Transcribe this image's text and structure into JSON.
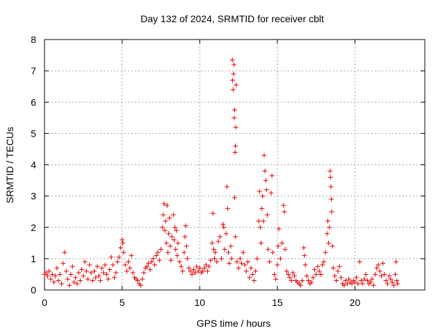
{
  "chart_data": {
    "type": "scatter",
    "title": "Day 132 of 2024, SRMTID for receiver cblt",
    "xlabel": "GPS time / hours",
    "ylabel": "SRMTID / TECUs",
    "xlim": [
      0,
      24.5
    ],
    "ylim": [
      0,
      8
    ],
    "xticks": [
      0,
      5,
      10,
      15,
      20
    ],
    "yticks": [
      0,
      1,
      2,
      3,
      4,
      5,
      6,
      7,
      8
    ],
    "grid": true,
    "marker": "plus",
    "marker_color": "#e00000",
    "series": [
      {
        "name": "SRMTID",
        "points": [
          [
            0.0,
            0.5
          ],
          [
            0.1,
            0.55
          ],
          [
            0.2,
            0.45
          ],
          [
            0.3,
            0.6
          ],
          [
            0.4,
            0.35
          ],
          [
            0.5,
            0.5
          ],
          [
            0.6,
            0.25
          ],
          [
            0.7,
            0.45
          ],
          [
            0.8,
            0.7
          ],
          [
            0.9,
            0.3
          ],
          [
            1.0,
            0.5
          ],
          [
            1.1,
            0.2
          ],
          [
            1.2,
            0.85
          ],
          [
            1.3,
            1.2
          ],
          [
            1.4,
            0.6
          ],
          [
            1.5,
            0.35
          ],
          [
            1.6,
            0.15
          ],
          [
            1.7,
            0.5
          ],
          [
            1.8,
            0.75
          ],
          [
            1.9,
            0.25
          ],
          [
            2.0,
            0.4
          ],
          [
            2.1,
            0.2
          ],
          [
            2.2,
            0.55
          ],
          [
            2.3,
            0.3
          ],
          [
            2.4,
            0.65
          ],
          [
            2.5,
            0.45
          ],
          [
            2.6,
            0.9
          ],
          [
            2.7,
            0.6
          ],
          [
            2.8,
            0.35
          ],
          [
            2.9,
            0.8
          ],
          [
            3.0,
            0.55
          ],
          [
            3.1,
            0.3
          ],
          [
            3.2,
            0.6
          ],
          [
            3.3,
            0.4
          ],
          [
            3.4,
            0.75
          ],
          [
            3.5,
            0.45
          ],
          [
            3.6,
            0.3
          ],
          [
            3.7,
            0.7
          ],
          [
            3.8,
            0.55
          ],
          [
            3.9,
            0.8
          ],
          [
            4.0,
            0.5
          ],
          [
            4.1,
            0.35
          ],
          [
            4.2,
            0.65
          ],
          [
            4.3,
            1.05
          ],
          [
            4.4,
            0.8
          ],
          [
            4.5,
            0.4
          ],
          [
            4.6,
            0.55
          ],
          [
            4.7,
            0.9
          ],
          [
            4.8,
            1.05
          ],
          [
            4.9,
            1.35
          ],
          [
            5.0,
            1.6
          ],
          [
            5.05,
            1.5
          ],
          [
            5.1,
            1.2
          ],
          [
            5.2,
            0.8
          ],
          [
            5.3,
            0.6
          ],
          [
            5.4,
            0.9
          ],
          [
            5.5,
            0.7
          ],
          [
            5.6,
            1.1
          ],
          [
            5.7,
            0.55
          ],
          [
            5.8,
            0.4
          ],
          [
            5.9,
            0.35
          ],
          [
            6.0,
            0.3
          ],
          [
            6.1,
            0.2
          ],
          [
            6.2,
            0.15
          ],
          [
            6.3,
            0.35
          ],
          [
            6.4,
            0.55
          ],
          [
            6.5,
            0.7
          ],
          [
            6.6,
            0.75
          ],
          [
            6.7,
            0.85
          ],
          [
            6.8,
            0.65
          ],
          [
            6.9,
            0.9
          ],
          [
            7.0,
            1.0
          ],
          [
            7.1,
            0.8
          ],
          [
            7.2,
            1.1
          ],
          [
            7.3,
            1.2
          ],
          [
            7.4,
            0.95
          ],
          [
            7.5,
            1.3
          ],
          [
            7.6,
            2.0
          ],
          [
            7.65,
            2.4
          ],
          [
            7.7,
            2.75
          ],
          [
            7.75,
            1.9
          ],
          [
            7.8,
            2.2
          ],
          [
            7.85,
            1.5
          ],
          [
            7.9,
            2.7
          ],
          [
            7.95,
            1.2
          ],
          [
            8.0,
            1.8
          ],
          [
            8.05,
            2.3
          ],
          [
            8.1,
            1.4
          ],
          [
            8.15,
            0.95
          ],
          [
            8.2,
            1.7
          ],
          [
            8.3,
            2.4
          ],
          [
            8.35,
            1.6
          ],
          [
            8.4,
            2.0
          ],
          [
            8.45,
            1.3
          ],
          [
            8.5,
            1.9
          ],
          [
            8.55,
            1.1
          ],
          [
            8.6,
            1.5
          ],
          [
            8.7,
            0.9
          ],
          [
            8.8,
            0.75
          ],
          [
            8.9,
            0.6
          ],
          [
            9.0,
            1.2
          ],
          [
            9.05,
            1.7
          ],
          [
            9.1,
            2.05
          ],
          [
            9.15,
            1.4
          ],
          [
            9.2,
            1.0
          ],
          [
            9.3,
            0.7
          ],
          [
            9.4,
            0.6
          ],
          [
            9.5,
            0.5
          ],
          [
            9.6,
            0.65
          ],
          [
            9.7,
            0.55
          ],
          [
            9.8,
            0.75
          ],
          [
            9.9,
            0.6
          ],
          [
            10.0,
            0.7
          ],
          [
            10.1,
            0.55
          ],
          [
            10.2,
            0.6
          ],
          [
            10.3,
            0.7
          ],
          [
            10.4,
            0.8
          ],
          [
            10.5,
            0.6
          ],
          [
            10.6,
            0.75
          ],
          [
            10.7,
            0.95
          ],
          [
            10.8,
            1.5
          ],
          [
            10.85,
            2.45
          ],
          [
            10.9,
            1.3
          ],
          [
            10.95,
            1.0
          ],
          [
            11.0,
            1.2
          ],
          [
            11.1,
            0.9
          ],
          [
            11.2,
            1.55
          ],
          [
            11.3,
            1.7
          ],
          [
            11.4,
            1.0
          ],
          [
            11.5,
            2.1
          ],
          [
            11.55,
            2.0
          ],
          [
            11.6,
            1.3
          ],
          [
            11.7,
            1.8
          ],
          [
            11.75,
            3.3
          ],
          [
            11.8,
            2.6
          ],
          [
            11.85,
            1.2
          ],
          [
            11.9,
            0.85
          ],
          [
            12.0,
            1.4
          ],
          [
            12.05,
            1.0
          ],
          [
            12.1,
            7.35
          ],
          [
            12.12,
            6.7
          ],
          [
            12.15,
            6.4
          ],
          [
            12.18,
            6.9
          ],
          [
            12.2,
            7.2
          ],
          [
            12.22,
            5.5
          ],
          [
            12.25,
            5.75
          ],
          [
            12.28,
            4.4
          ],
          [
            12.3,
            4.6
          ],
          [
            12.32,
            5.2
          ],
          [
            12.35,
            6.55
          ],
          [
            12.25,
            2.95
          ],
          [
            12.3,
            1.7
          ],
          [
            12.4,
            0.9
          ],
          [
            12.5,
            0.7
          ],
          [
            12.6,
            1.0
          ],
          [
            12.7,
            0.85
          ],
          [
            12.8,
            1.2
          ],
          [
            12.9,
            0.8
          ],
          [
            13.0,
            0.6
          ],
          [
            13.1,
            0.9
          ],
          [
            13.2,
            0.4
          ],
          [
            13.3,
            0.7
          ],
          [
            13.4,
            0.5
          ],
          [
            13.5,
            0.3
          ],
          [
            13.6,
            0.6
          ],
          [
            13.7,
            1.0
          ],
          [
            13.8,
            2.2
          ],
          [
            13.85,
            3.15
          ],
          [
            13.9,
            2.0
          ],
          [
            13.95,
            1.5
          ],
          [
            14.0,
            2.6
          ],
          [
            14.05,
            3.0
          ],
          [
            14.1,
            2.2
          ],
          [
            14.15,
            4.3
          ],
          [
            14.2,
            3.8
          ],
          [
            14.25,
            3.5
          ],
          [
            14.3,
            3.2
          ],
          [
            14.35,
            2.4
          ],
          [
            14.4,
            1.3
          ],
          [
            14.5,
            0.9
          ],
          [
            14.6,
            3.1
          ],
          [
            14.65,
            3.65
          ],
          [
            14.7,
            1.2
          ],
          [
            14.8,
            0.5
          ],
          [
            14.9,
            0.35
          ],
          [
            15.0,
            0.8
          ],
          [
            15.05,
            1.4
          ],
          [
            15.1,
            1.95
          ],
          [
            15.2,
            1.0
          ],
          [
            15.3,
            1.5
          ],
          [
            15.4,
            2.7
          ],
          [
            15.45,
            2.5
          ],
          [
            15.5,
            1.3
          ],
          [
            15.6,
            0.6
          ],
          [
            15.7,
            0.5
          ],
          [
            15.8,
            0.4
          ],
          [
            15.9,
            0.3
          ],
          [
            16.0,
            0.55
          ],
          [
            16.1,
            0.45
          ],
          [
            16.2,
            0.3
          ],
          [
            16.3,
            0.25
          ],
          [
            16.4,
            0.2
          ],
          [
            16.5,
            0.15
          ],
          [
            16.6,
            0.3
          ],
          [
            16.7,
            1.35
          ],
          [
            16.75,
            1.1
          ],
          [
            16.8,
            0.8
          ],
          [
            16.9,
            0.45
          ],
          [
            17.0,
            0.3
          ],
          [
            17.1,
            0.2
          ],
          [
            17.2,
            0.25
          ],
          [
            17.3,
            0.4
          ],
          [
            17.4,
            0.65
          ],
          [
            17.5,
            0.5
          ],
          [
            17.6,
            0.75
          ],
          [
            17.7,
            0.6
          ],
          [
            17.8,
            0.5
          ],
          [
            17.9,
            0.8
          ],
          [
            18.0,
            0.9
          ],
          [
            18.1,
            1.2
          ],
          [
            18.2,
            1.8
          ],
          [
            18.25,
            2.2
          ],
          [
            18.3,
            1.5
          ],
          [
            18.35,
            2.0
          ],
          [
            18.4,
            3.8
          ],
          [
            18.42,
            3.6
          ],
          [
            18.45,
            3.3
          ],
          [
            18.48,
            2.9
          ],
          [
            18.5,
            2.5
          ],
          [
            18.55,
            1.4
          ],
          [
            18.6,
            0.7
          ],
          [
            18.7,
            0.45
          ],
          [
            18.8,
            0.3
          ],
          [
            18.9,
            0.6
          ],
          [
            19.0,
            0.75
          ],
          [
            19.1,
            0.4
          ],
          [
            19.2,
            0.2
          ],
          [
            19.3,
            0.15
          ],
          [
            19.4,
            0.3
          ],
          [
            19.5,
            0.2
          ],
          [
            19.6,
            0.35
          ],
          [
            19.7,
            0.25
          ],
          [
            19.8,
            0.2
          ],
          [
            19.9,
            0.3
          ],
          [
            20.0,
            0.25
          ],
          [
            20.1,
            0.4
          ],
          [
            20.2,
            0.2
          ],
          [
            20.3,
            0.9
          ],
          [
            20.4,
            0.3
          ],
          [
            20.5,
            0.2
          ],
          [
            20.6,
            0.35
          ],
          [
            20.7,
            0.5
          ],
          [
            20.8,
            0.3
          ],
          [
            20.9,
            0.2
          ],
          [
            21.0,
            0.25
          ],
          [
            21.1,
            0.35
          ],
          [
            21.2,
            0.15
          ],
          [
            21.3,
            0.5
          ],
          [
            21.4,
            0.7
          ],
          [
            21.5,
            0.8
          ],
          [
            21.6,
            0.6
          ],
          [
            21.7,
            0.45
          ],
          [
            21.8,
            0.85
          ],
          [
            21.9,
            0.5
          ],
          [
            22.0,
            0.3
          ],
          [
            22.1,
            0.2
          ],
          [
            22.2,
            0.45
          ],
          [
            22.3,
            0.35
          ],
          [
            22.4,
            0.25
          ],
          [
            22.5,
            0.15
          ],
          [
            22.6,
            0.5
          ],
          [
            22.65,
            0.9
          ],
          [
            22.7,
            0.3
          ],
          [
            22.75,
            0.2
          ]
        ]
      }
    ]
  }
}
